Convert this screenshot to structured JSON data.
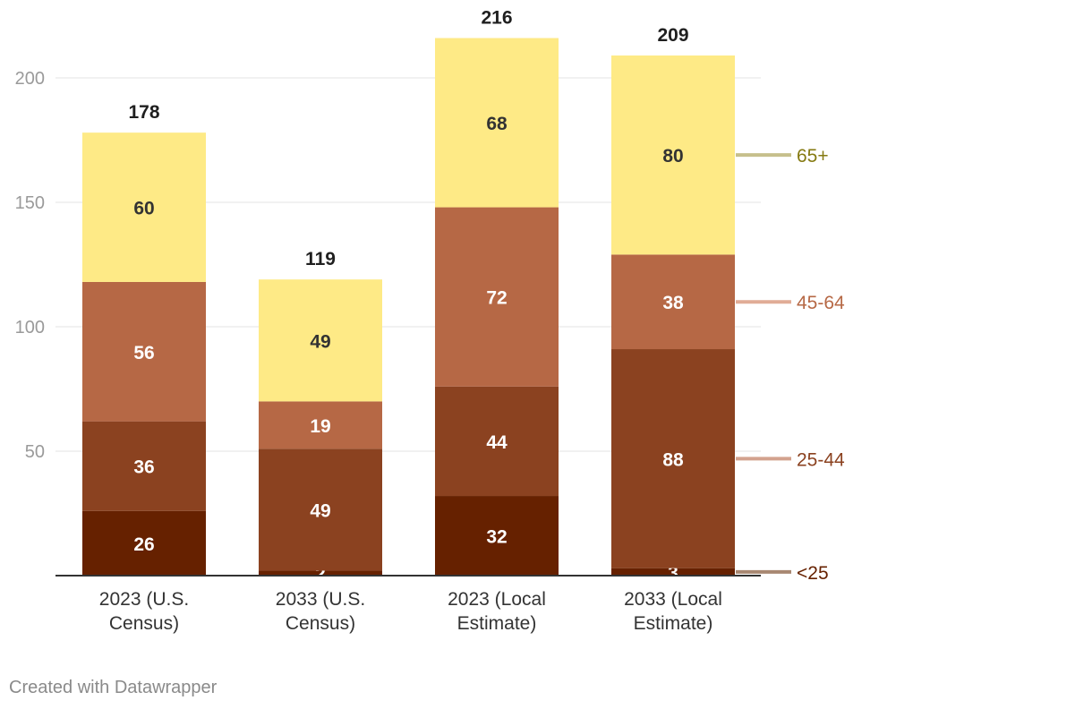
{
  "chart_data": {
    "type": "bar",
    "stacked": true,
    "categories": [
      "2023 (U.S. Census)",
      "2033 (U.S. Census)",
      "2023 (Local Estimate)",
      "2033 (Local Estimate)"
    ],
    "category_lines": [
      [
        "2023 (U.S.",
        "Census)"
      ],
      [
        "2033 (U.S.",
        "Census)"
      ],
      [
        "2023 (Local",
        "Estimate)"
      ],
      [
        "2033 (Local",
        "Estimate)"
      ]
    ],
    "series": [
      {
        "name": "<25",
        "values": [
          26,
          2,
          32,
          3
        ],
        "color": "#662100",
        "line_color": "#a88872",
        "label_color": "#662100"
      },
      {
        "name": "25-44",
        "values": [
          36,
          49,
          44,
          88
        ],
        "color": "#8b4220",
        "line_color": "#d3a28e",
        "label_color": "#8b4220"
      },
      {
        "name": "45-64",
        "values": [
          56,
          19,
          72,
          38
        ],
        "color": "#b66845",
        "line_color": "#e0ac96",
        "label_color": "#b66845"
      },
      {
        "name": "65+",
        "values": [
          60,
          49,
          68,
          80
        ],
        "color": "#feea86",
        "line_color": "#c6bf8c",
        "label_color": "#857a12"
      }
    ],
    "totals": [
      178,
      119,
      216,
      209
    ],
    "y_ticks": [
      50,
      100,
      150,
      200
    ],
    "ylim": [
      0,
      200
    ],
    "grid": true,
    "legend": "direct labels right"
  },
  "footer": "Created with Datawrapper"
}
